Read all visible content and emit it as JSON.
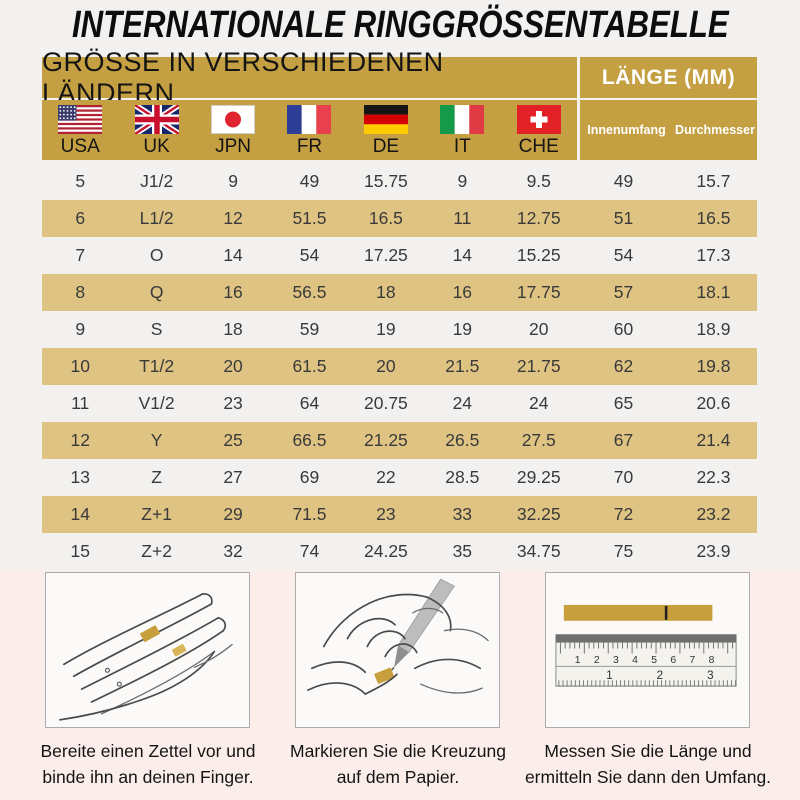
{
  "title": "INTERNATIONALE RINGGRÖSSENTABELLE",
  "table": {
    "header_left": "GRÖSSE IN VERSCHIEDENEN LÄNDERN",
    "header_right": "LÄNGE (MM)",
    "countries": [
      {
        "code": "usa",
        "label": "USA"
      },
      {
        "code": "uk",
        "label": "UK"
      },
      {
        "code": "jpn",
        "label": "JPN"
      },
      {
        "code": "fr",
        "label": "FR"
      },
      {
        "code": "de",
        "label": "DE"
      },
      {
        "code": "it",
        "label": "IT"
      },
      {
        "code": "che",
        "label": "CHE"
      }
    ],
    "length_columns": [
      "Innenumfang",
      "Durchmesser"
    ],
    "rows": [
      [
        "5",
        "J1/2",
        "9",
        "49",
        "15.75",
        "9",
        "9.5",
        "49",
        "15.7"
      ],
      [
        "6",
        "L1/2",
        "12",
        "51.5",
        "16.5",
        "11",
        "12.75",
        "51",
        "16.5"
      ],
      [
        "7",
        "O",
        "14",
        "54",
        "17.25",
        "14",
        "15.25",
        "54",
        "17.3"
      ],
      [
        "8",
        "Q",
        "16",
        "56.5",
        "18",
        "16",
        "17.75",
        "57",
        "18.1"
      ],
      [
        "9",
        "S",
        "18",
        "59",
        "19",
        "19",
        "20",
        "60",
        "18.9"
      ],
      [
        "10",
        "T1/2",
        "20",
        "61.5",
        "20",
        "21.5",
        "21.75",
        "62",
        "19.8"
      ],
      [
        "11",
        "V1/2",
        "23",
        "64",
        "20.75",
        "24",
        "24",
        "65",
        "20.6"
      ],
      [
        "12",
        "Y",
        "25",
        "66.5",
        "21.25",
        "26.5",
        "27.5",
        "67",
        "21.4"
      ],
      [
        "13",
        "Z",
        "27",
        "69",
        "22",
        "28.5",
        "29.25",
        "70",
        "22.3"
      ],
      [
        "14",
        "Z+1",
        "29",
        "71.5",
        "23",
        "33",
        "32.25",
        "72",
        "23.2"
      ],
      [
        "15",
        "Z+2",
        "32",
        "74",
        "24.25",
        "35",
        "34.75",
        "75",
        "23.9"
      ]
    ]
  },
  "colors": {
    "header_gold": "#C5A042",
    "stripe_gold": "#DFC383",
    "page_bg": "#F2F1EF",
    "bottom_bg": "#FAEDEA"
  },
  "steps": [
    {
      "caption_line1": "Bereite einen Zettel vor und",
      "caption_line2": "binde ihn an deinen Finger.",
      "illustration": "hand-with-paper-strip"
    },
    {
      "caption_line1": "Markieren Sie die Kreuzung",
      "caption_line2": "auf dem Papier.",
      "illustration": "mark-crossing-with-pen"
    },
    {
      "caption_line1": "Messen Sie die Länge und",
      "caption_line2": "ermitteln Sie dann den Umfang.",
      "illustration": "measure-strip-with-ruler"
    }
  ],
  "ruler": {
    "cm_labels": [
      "1",
      "2",
      "3",
      "4",
      "5",
      "6",
      "7",
      "8"
    ],
    "inch_labels": [
      "1",
      "2",
      "3"
    ]
  }
}
